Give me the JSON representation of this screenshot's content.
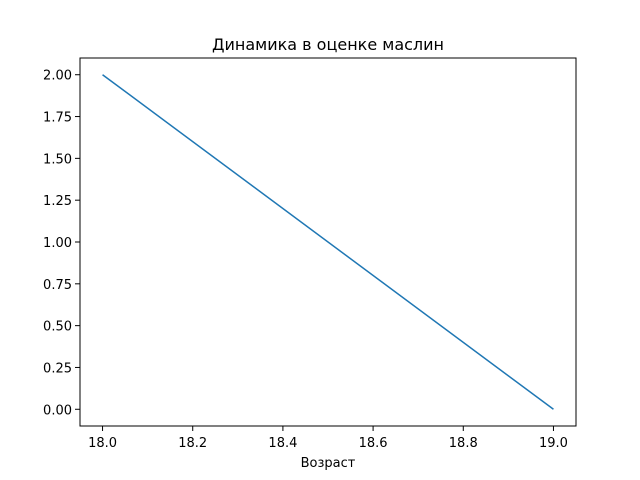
{
  "chart_data": {
    "type": "line",
    "title": "Динамика в оценке маслин",
    "xlabel": "Возраст",
    "ylabel": "",
    "xlim": [
      17.95,
      19.05
    ],
    "ylim": [
      -0.1,
      2.1
    ],
    "xticks": [
      "18.0",
      "18.2",
      "18.4",
      "18.6",
      "18.8",
      "19.0"
    ],
    "yticks": [
      "0.00",
      "0.25",
      "0.50",
      "0.75",
      "1.00",
      "1.25",
      "1.50",
      "1.75",
      "2.00"
    ],
    "grid": false,
    "series": [
      {
        "x": [
          18.0,
          19.0
        ],
        "values": [
          2.0,
          0.0
        ],
        "color": "#1f77b4"
      }
    ]
  }
}
